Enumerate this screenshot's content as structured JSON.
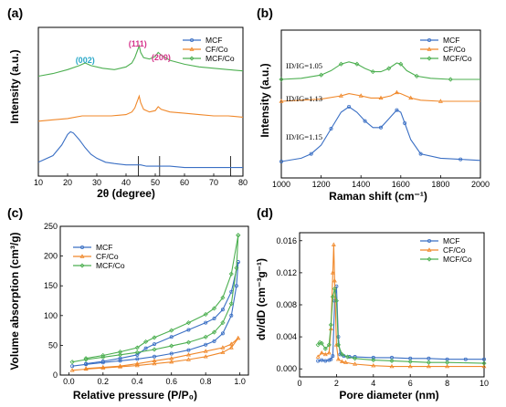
{
  "colors": {
    "MCF": "#3a6fc4",
    "CF/Co": "#f0882a",
    "MCF/Co": "#4caf50",
    "peak002": "#29a8c8",
    "peak111": "#d6348c",
    "peak200": "#d6348c"
  },
  "chart_data": [
    {
      "panel": "(a)",
      "type": "line",
      "xlabel": "2θ (degree)",
      "ylabel": "Intensity (a.u.)",
      "xlim": [
        10,
        80
      ],
      "xticks": [
        10,
        20,
        30,
        40,
        50,
        60,
        70,
        80
      ],
      "legend_position": "top-right",
      "series": [
        {
          "name": "MCF",
          "x": [
            10,
            15,
            18,
            20,
            21,
            22,
            24,
            26,
            28,
            30,
            33,
            36,
            40,
            43,
            44,
            45,
            47,
            50,
            55,
            60,
            65,
            70,
            75,
            80
          ],
          "y": [
            0.05,
            0.1,
            0.18,
            0.26,
            0.28,
            0.27,
            0.22,
            0.16,
            0.11,
            0.08,
            0.05,
            0.04,
            0.03,
            0.03,
            0.03,
            0.03,
            0.02,
            0.02,
            0.02,
            0.01,
            0.01,
            0.01,
            0.01,
            0.01
          ]
        },
        {
          "name": "CF/Co",
          "x": [
            10,
            15,
            20,
            25,
            30,
            35,
            40,
            42,
            43,
            44,
            44.5,
            45,
            46,
            48,
            50,
            51,
            52,
            55,
            60,
            65,
            70,
            75,
            80
          ],
          "y": [
            0.36,
            0.37,
            0.38,
            0.4,
            0.4,
            0.4,
            0.41,
            0.43,
            0.46,
            0.52,
            0.55,
            0.5,
            0.45,
            0.43,
            0.44,
            0.47,
            0.45,
            0.43,
            0.42,
            0.41,
            0.4,
            0.4,
            0.39
          ]
        },
        {
          "name": "MCF/Co",
          "x": [
            10,
            15,
            20,
            24,
            26,
            28,
            32,
            36,
            40,
            42,
            43,
            44,
            44.5,
            45,
            46,
            48,
            50,
            51,
            52,
            55,
            60,
            65,
            70,
            75,
            80
          ],
          "y": [
            0.7,
            0.72,
            0.75,
            0.78,
            0.8,
            0.78,
            0.76,
            0.75,
            0.77,
            0.8,
            0.84,
            0.9,
            0.93,
            0.88,
            0.84,
            0.83,
            0.85,
            0.88,
            0.86,
            0.82,
            0.79,
            0.77,
            0.76,
            0.75,
            0.74
          ]
        }
      ],
      "reference_lines": [
        44.2,
        51.5,
        75.8
      ],
      "annotations": [
        {
          "text": "(002)",
          "x": 26,
          "colorKey": "peak002"
        },
        {
          "text": "(111)",
          "x": 44,
          "colorKey": "peak111"
        },
        {
          "text": "(200)",
          "x": 52,
          "colorKey": "peak200"
        }
      ]
    },
    {
      "panel": "(b)",
      "type": "line",
      "xlabel": "Raman shift (cm⁻¹)",
      "ylabel": "Intensity (a.u.)",
      "xlim": [
        1000,
        2000
      ],
      "xticks": [
        1000,
        1200,
        1400,
        1600,
        1800,
        2000
      ],
      "legend_position": "top-right",
      "series": [
        {
          "name": "MCF",
          "x": [
            1000,
            1100,
            1150,
            1200,
            1250,
            1300,
            1340,
            1380,
            1420,
            1460,
            1500,
            1540,
            1580,
            1600,
            1620,
            1650,
            1700,
            1800,
            1900,
            2000
          ],
          "y": [
            0.05,
            0.08,
            0.12,
            0.2,
            0.35,
            0.5,
            0.55,
            0.5,
            0.42,
            0.36,
            0.36,
            0.44,
            0.52,
            0.5,
            0.4,
            0.25,
            0.12,
            0.08,
            0.07,
            0.06
          ]
        },
        {
          "name": "CF/Co",
          "x": [
            1000,
            1200,
            1300,
            1340,
            1400,
            1450,
            1500,
            1550,
            1580,
            1600,
            1650,
            1700,
            1800,
            2000
          ],
          "y": [
            0.6,
            0.62,
            0.65,
            0.67,
            0.65,
            0.63,
            0.63,
            0.65,
            0.68,
            0.67,
            0.63,
            0.61,
            0.6,
            0.6
          ]
        },
        {
          "name": "MCF/Co",
          "x": [
            1000,
            1100,
            1200,
            1250,
            1300,
            1340,
            1380,
            1420,
            1460,
            1500,
            1540,
            1580,
            1600,
            1630,
            1680,
            1750,
            1850,
            2000
          ],
          "y": [
            0.8,
            0.81,
            0.84,
            0.88,
            0.94,
            0.96,
            0.94,
            0.9,
            0.87,
            0.87,
            0.9,
            0.95,
            0.94,
            0.88,
            0.83,
            0.81,
            0.8,
            0.8
          ]
        }
      ],
      "annotations": [
        {
          "label": "ID/IG=1.05",
          "seriesName": "MCF/Co"
        },
        {
          "label": "ID/IG=1.13",
          "seriesName": "CF/Co"
        },
        {
          "label": "ID/IG=1.15",
          "seriesName": "MCF"
        }
      ]
    },
    {
      "panel": "(c)",
      "type": "line",
      "xlabel": "Relative pressure (P/P₀)",
      "ylabel": "Volume absorption (cm³/g)",
      "xlim": [
        -0.05,
        1.05
      ],
      "ylim": [
        0,
        250
      ],
      "xticks": [
        0.0,
        0.2,
        0.4,
        0.6,
        0.8,
        1.0
      ],
      "yticks": [
        0,
        50,
        100,
        150,
        200,
        250
      ],
      "legend_position": "top-left",
      "series": [
        {
          "name": "MCF",
          "adsorption": {
            "x": [
              0.02,
              0.1,
              0.2,
              0.3,
              0.4,
              0.5,
              0.6,
              0.7,
              0.8,
              0.85,
              0.9,
              0.95,
              0.98,
              0.99
            ],
            "y": [
              15,
              18,
              21,
              24,
              27,
              31,
              36,
              42,
              51,
              57,
              70,
              100,
              150,
              190
            ]
          },
          "desorption": {
            "x": [
              0.99,
              0.95,
              0.9,
              0.85,
              0.8,
              0.7,
              0.6,
              0.5,
              0.45,
              0.4,
              0.3,
              0.2,
              0.1
            ],
            "y": [
              190,
              140,
              110,
              95,
              88,
              76,
              64,
              52,
              45,
              34,
              28,
              23,
              19
            ]
          }
        },
        {
          "name": "CF/Co",
          "adsorption": {
            "x": [
              0.02,
              0.1,
              0.2,
              0.3,
              0.4,
              0.5,
              0.6,
              0.7,
              0.8,
              0.9,
              0.95,
              0.99
            ],
            "y": [
              8,
              10,
              12,
              14,
              16,
              19,
              22,
              26,
              31,
              38,
              46,
              62
            ]
          },
          "desorption": {
            "x": [
              0.99,
              0.95,
              0.9,
              0.8,
              0.7,
              0.6,
              0.5,
              0.4,
              0.3,
              0.2,
              0.1
            ],
            "y": [
              62,
              52,
              46,
              40,
              34,
              28,
              24,
              19,
              15,
              13,
              11
            ]
          }
        },
        {
          "name": "MCF/Co",
          "adsorption": {
            "x": [
              0.02,
              0.1,
              0.2,
              0.3,
              0.4,
              0.5,
              0.6,
              0.7,
              0.8,
              0.85,
              0.9,
              0.95,
              0.98,
              0.99
            ],
            "y": [
              22,
              26,
              30,
              34,
              38,
              43,
              49,
              55,
              64,
              72,
              88,
              120,
              180,
              235
            ]
          },
          "desorption": {
            "x": [
              0.99,
              0.95,
              0.9,
              0.85,
              0.8,
              0.7,
              0.6,
              0.5,
              0.45,
              0.4,
              0.3,
              0.2,
              0.1
            ],
            "y": [
              235,
              170,
              130,
              112,
              102,
              88,
              75,
              63,
              56,
              46,
              39,
              33,
              28
            ]
          }
        }
      ]
    },
    {
      "panel": "(d)",
      "type": "line",
      "xlabel": "Pore diameter (nm)",
      "ylabel": "dv/dD (cm⁻³g⁻¹)",
      "xlim": [
        0,
        10
      ],
      "ylim": [
        -0.001,
        0.017
      ],
      "xticks": [
        0,
        2,
        4,
        6,
        8,
        10
      ],
      "yticks": [
        0.0,
        0.004,
        0.008,
        0.012,
        0.016
      ],
      "legend_position": "top-right",
      "series": [
        {
          "name": "MCF",
          "x": [
            1.0,
            1.2,
            1.4,
            1.6,
            1.7,
            1.8,
            1.9,
            2.0,
            2.1,
            2.2,
            2.4,
            2.7,
            3,
            4,
            5,
            6,
            7,
            8,
            9,
            10
          ],
          "y": [
            0.001,
            0.0011,
            0.001,
            0.0011,
            0.0012,
            0.0016,
            0.0085,
            0.0103,
            0.004,
            0.0018,
            0.0016,
            0.0015,
            0.0015,
            0.0014,
            0.0014,
            0.0013,
            0.0013,
            0.0012,
            0.0012,
            0.0012
          ]
        },
        {
          "name": "CF/Co",
          "x": [
            1.0,
            1.2,
            1.4,
            1.6,
            1.7,
            1.8,
            1.85,
            1.9,
            2.0,
            2.1,
            2.3,
            2.5,
            3,
            4,
            5,
            6,
            7,
            8,
            10
          ],
          "y": [
            0.0015,
            0.002,
            0.0018,
            0.002,
            0.005,
            0.012,
            0.0155,
            0.011,
            0.003,
            0.0012,
            0.0009,
            0.0008,
            0.0006,
            0.0004,
            0.0003,
            0.0003,
            0.0003,
            0.0003,
            0.0003
          ]
        },
        {
          "name": "MCF/Co",
          "x": [
            1.0,
            1.1,
            1.2,
            1.4,
            1.6,
            1.7,
            1.8,
            1.9,
            2.0,
            2.1,
            2.3,
            2.6,
            3,
            4,
            5,
            6,
            7,
            8,
            10
          ],
          "y": [
            0.003,
            0.0033,
            0.0032,
            0.0025,
            0.003,
            0.0055,
            0.009,
            0.01,
            0.0085,
            0.003,
            0.0018,
            0.0015,
            0.0013,
            0.0011,
            0.001,
            0.0009,
            0.0008,
            0.0008,
            0.0007
          ]
        }
      ]
    }
  ]
}
